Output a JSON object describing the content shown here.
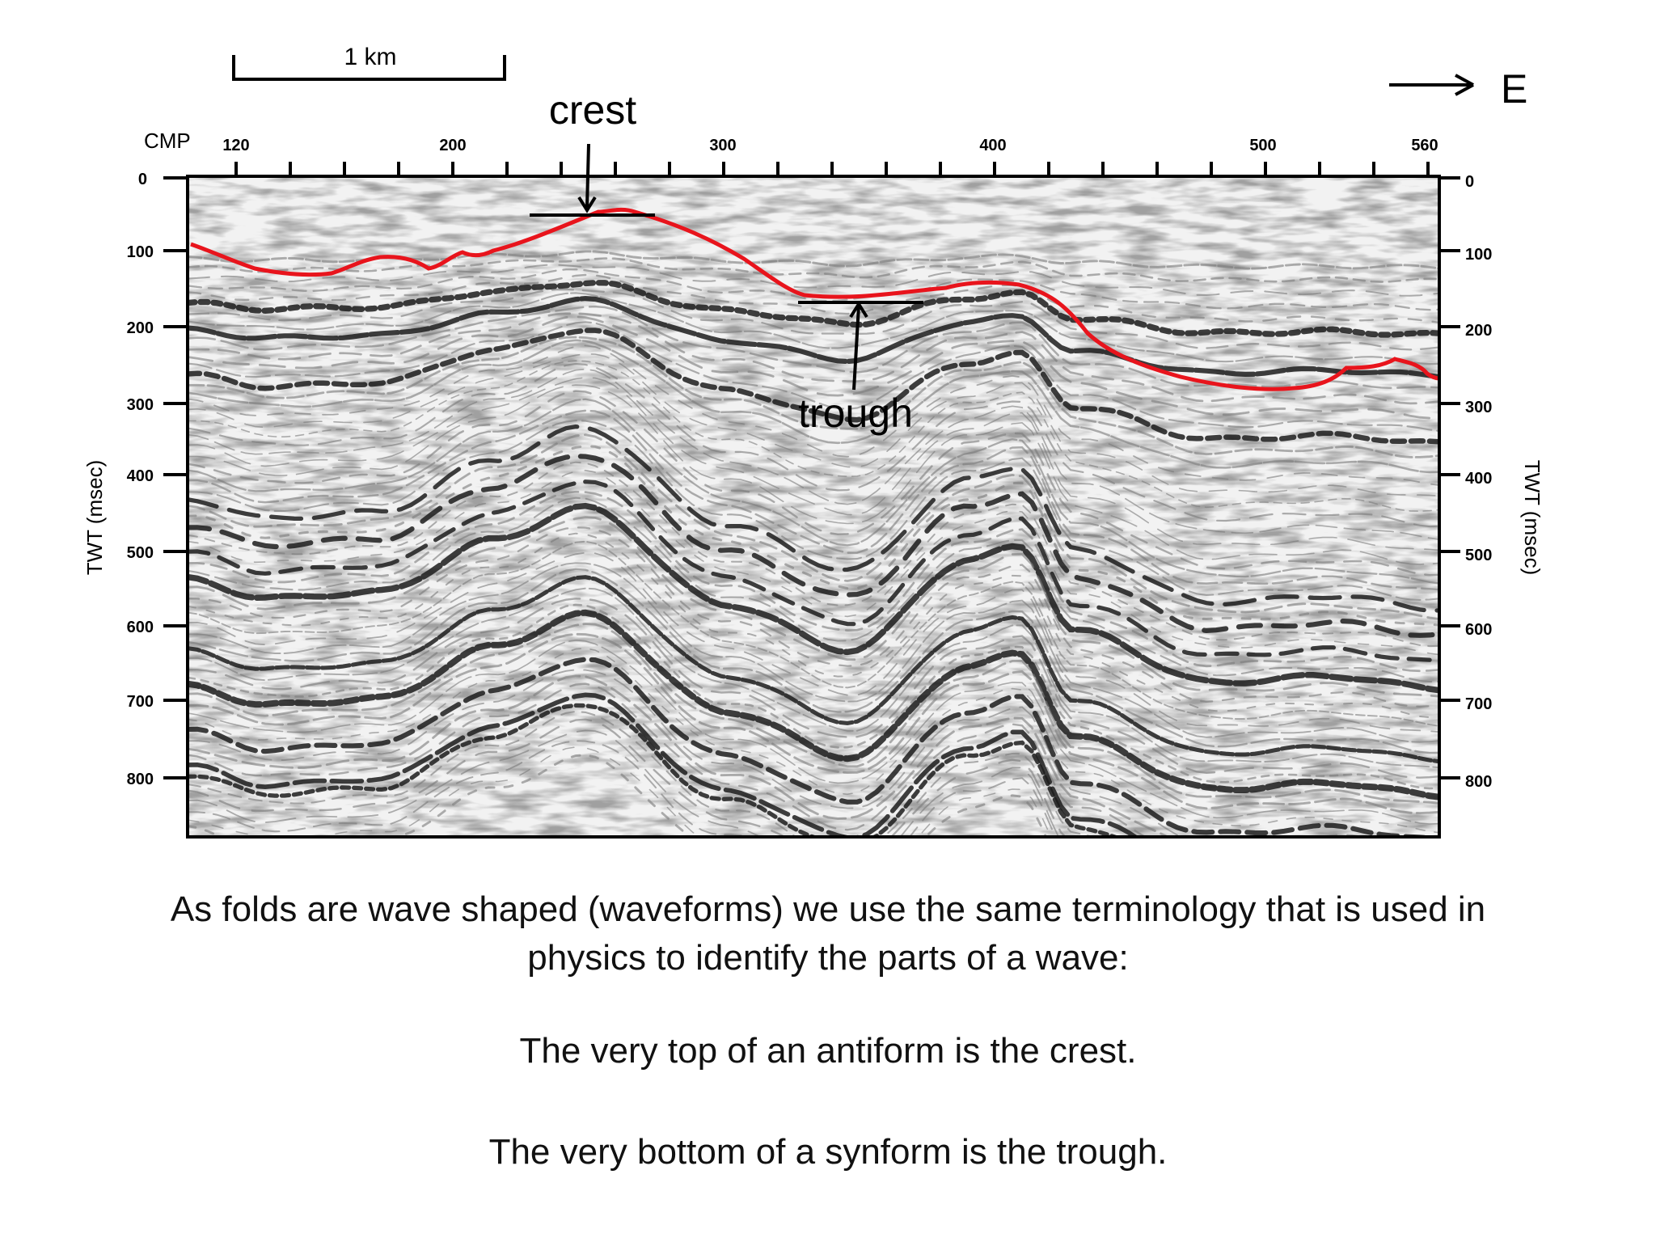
{
  "scale_bar": {
    "label": "1 km"
  },
  "direction": {
    "label": "E"
  },
  "axes": {
    "top_label": "CMP",
    "top_ticks": [
      "120",
      "200",
      "300",
      "400",
      "500",
      "560"
    ],
    "left_ticks": [
      "0",
      "100",
      "200",
      "300",
      "400",
      "500",
      "600",
      "700",
      "800"
    ],
    "right_ticks": [
      "0",
      "100",
      "200",
      "300",
      "400",
      "500",
      "600",
      "700",
      "800"
    ],
    "left_label": "TWT (msec)",
    "right_label": "TWT (msec)"
  },
  "annotations": {
    "crest": "crest",
    "trough": "trough"
  },
  "colors": {
    "horizon": "#e8141c",
    "reflector": "#222222",
    "background": "#ffffff"
  },
  "captions": {
    "intro_line1": "As folds are wave shaped (waveforms) we use the same terminology that is used in",
    "intro_line2": "physics to identify the parts of a wave:",
    "crest": "The very top of an antiform is the crest.",
    "trough": "The very bottom of a synform is the trough."
  }
}
